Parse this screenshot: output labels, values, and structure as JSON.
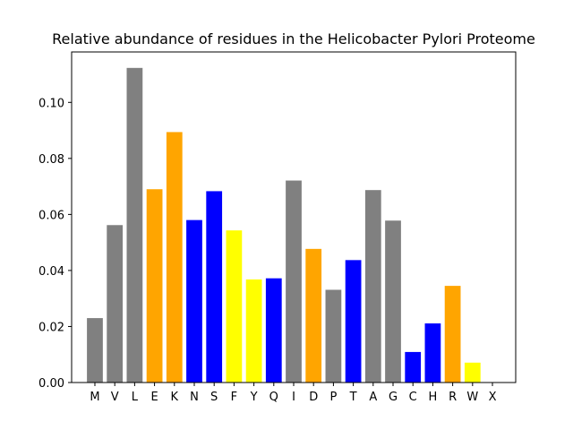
{
  "chart_data": {
    "type": "bar",
    "title": "Relative abundance of residues in the Helicobacter Pylori Proteome",
    "xlabel": "",
    "ylabel": "",
    "categories": [
      "M",
      "V",
      "L",
      "E",
      "K",
      "N",
      "S",
      "F",
      "Y",
      "Q",
      "I",
      "D",
      "P",
      "T",
      "A",
      "G",
      "C",
      "H",
      "R",
      "W",
      "X"
    ],
    "values": [
      0.023,
      0.0562,
      0.1123,
      0.069,
      0.0894,
      0.058,
      0.0683,
      0.0543,
      0.0368,
      0.0372,
      0.0721,
      0.0477,
      0.0331,
      0.0437,
      0.0687,
      0.0578,
      0.0109,
      0.0211,
      0.0345,
      0.0071,
      0.0
    ],
    "bar_colors": [
      "gray",
      "gray",
      "gray",
      "orange",
      "orange",
      "blue",
      "blue",
      "yellow",
      "yellow",
      "blue",
      "gray",
      "orange",
      "gray",
      "blue",
      "gray",
      "gray",
      "blue",
      "blue",
      "orange",
      "yellow",
      "gray"
    ],
    "ylim": [
      0,
      0.118
    ],
    "yticks": [
      "0.00",
      "0.02",
      "0.04",
      "0.06",
      "0.08",
      "0.10"
    ],
    "grid": false,
    "legend": "none"
  },
  "colors": {
    "gray": "#808080",
    "orange": "#ffa500",
    "blue": "#0000ff",
    "yellow": "#ffff00",
    "axis": "#000000"
  }
}
